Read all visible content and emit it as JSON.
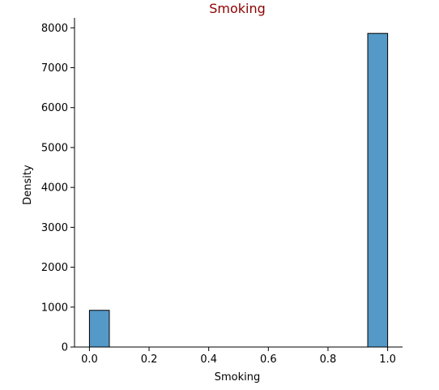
{
  "chart_data": {
    "type": "bar",
    "title": "Smoking",
    "title_color": "#8b0000",
    "xlabel": "Smoking",
    "ylabel": "Density",
    "xlim": [
      -0.05,
      1.05
    ],
    "ylim": [
      0,
      8250
    ],
    "xticks": [
      0.0,
      0.2,
      0.4,
      0.6,
      0.8,
      1.0
    ],
    "xtick_labels": [
      "0.0",
      "0.2",
      "0.4",
      "0.6",
      "0.8",
      "1.0"
    ],
    "yticks": [
      0,
      1000,
      2000,
      3000,
      4000,
      5000,
      6000,
      7000,
      8000
    ],
    "ytick_labels": [
      "0",
      "1000",
      "2000",
      "3000",
      "4000",
      "5000",
      "6000",
      "7000",
      "8000"
    ],
    "bins": [
      {
        "x0": 0.0,
        "x1": 0.0667,
        "value": 920
      },
      {
        "x0": 0.9333,
        "x1": 1.0,
        "value": 7860
      }
    ],
    "bar_color": "#5499c7",
    "bar_edge_color": "#000000",
    "grid": false,
    "spines": [
      "left",
      "bottom"
    ]
  }
}
